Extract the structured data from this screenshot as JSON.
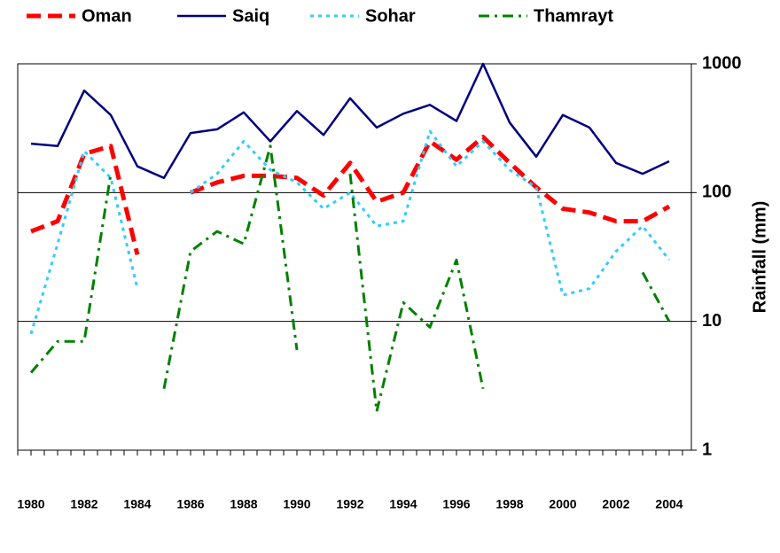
{
  "chart_data": {
    "type": "line",
    "y_label": "Rainfall (mm)",
    "log_scale": true,
    "grid": true,
    "categories": [
      "1980",
      null,
      "1982",
      null,
      "1984",
      null,
      "1986",
      null,
      "1988",
      null,
      "1990",
      null,
      "1992",
      null,
      "1994",
      null,
      "1996",
      null,
      "1998",
      null,
      "2000",
      null,
      "2002",
      null,
      "2004"
    ],
    "ylim": [
      1,
      1000
    ],
    "yticks": [
      1,
      10,
      100,
      1000
    ],
    "series": [
      {
        "name": "Oman",
        "color": "#ff0000",
        "values": [
          50,
          60,
          200,
          230,
          33,
          null,
          100,
          120,
          135,
          135,
          130,
          95,
          170,
          85,
          100,
          250,
          180,
          270,
          170,
          110,
          75,
          70,
          60,
          60,
          78
        ]
      },
      {
        "name": "Saiq",
        "color": "#000080",
        "values": [
          240,
          230,
          620,
          400,
          160,
          130,
          290,
          310,
          420,
          250,
          430,
          280,
          540,
          320,
          410,
          480,
          360,
          1000,
          350,
          190,
          400,
          320,
          170,
          140,
          175
        ]
      },
      {
        "name": "Sohar",
        "color": "#33ccff",
        "values": [
          8,
          40,
          210,
          130,
          18,
          null,
          100,
          140,
          250,
          150,
          120,
          75,
          100,
          55,
          60,
          300,
          160,
          250,
          150,
          110,
          16,
          18,
          35,
          55,
          30
        ]
      },
      {
        "name": "Thamrayt",
        "color": "#008000",
        "values": [
          4,
          7,
          7,
          140,
          null,
          3,
          35,
          50,
          40,
          230,
          6,
          null,
          140,
          2,
          14,
          9,
          30,
          3,
          null,
          null,
          null,
          null,
          null,
          24,
          10
        ]
      }
    ]
  }
}
